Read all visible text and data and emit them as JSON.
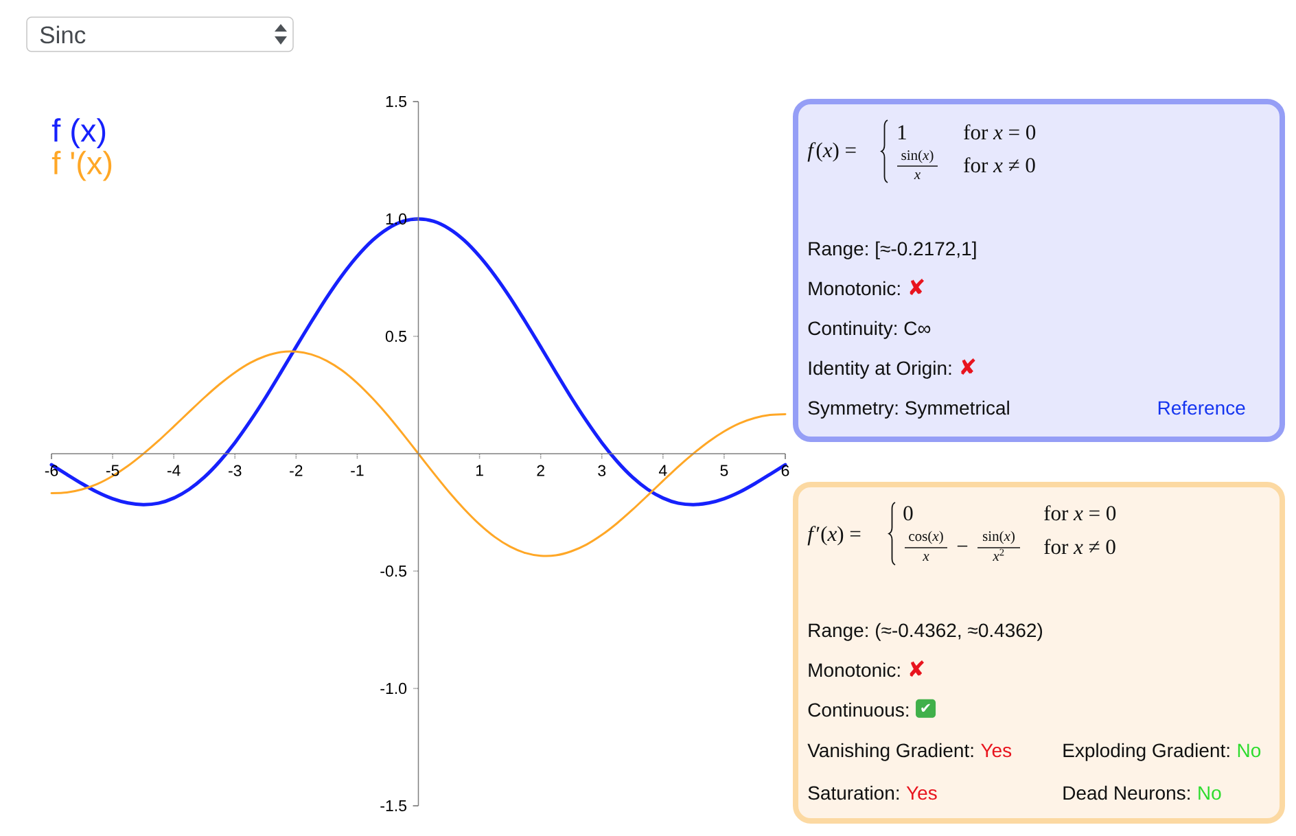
{
  "chart_data": [
    {
      "type": "line",
      "title": "Sinc",
      "x": [
        -6,
        -5.75,
        -5.5,
        -5.25,
        -5,
        -4.75,
        -4.5,
        -4.25,
        -4,
        -3.75,
        -3.5,
        -3.25,
        -3,
        -2.75,
        -2.5,
        -2.25,
        -2,
        -1.75,
        -1.5,
        -1.25,
        -1,
        -0.75,
        -0.5,
        -0.25,
        0,
        0.25,
        0.5,
        0.75,
        1,
        1.25,
        1.5,
        1.75,
        2,
        2.25,
        2.5,
        2.75,
        3,
        3.25,
        3.5,
        3.75,
        4,
        4.25,
        4.5,
        4.75,
        5,
        5.25,
        5.5,
        5.75,
        6
      ],
      "series": [
        {
          "name": "f (x)",
          "color": "#1621fc",
          "values": [
            -0.047,
            -0.088,
            -0.128,
            -0.164,
            -0.192,
            -0.21,
            -0.217,
            -0.211,
            -0.189,
            -0.152,
            -0.1,
            -0.033,
            0.047,
            0.139,
            0.239,
            0.346,
            0.455,
            0.562,
            0.665,
            0.759,
            0.841,
            0.909,
            0.959,
            0.99,
            1,
            0.99,
            0.959,
            0.909,
            0.841,
            0.759,
            0.665,
            0.562,
            0.455,
            0.346,
            0.239,
            0.139,
            0.047,
            -0.033,
            -0.1,
            -0.152,
            -0.189,
            -0.211,
            -0.217,
            -0.21,
            -0.192,
            -0.164,
            -0.128,
            -0.088,
            -0.047
          ]
        },
        {
          "name": "f '(x)",
          "color": "#ffa726",
          "values": [
            -0.168,
            -0.165,
            -0.152,
            -0.129,
            -0.095,
            -0.052,
            -0.001,
            0.055,
            0.116,
            0.178,
            0.239,
            0.296,
            0.346,
            0.387,
            0.416,
            0.433,
            0.435,
            0.423,
            0.396,
            0.355,
            0.301,
            0.236,
            0.163,
            0.083,
            0,
            -0.083,
            -0.163,
            -0.236,
            -0.301,
            -0.355,
            -0.396,
            -0.423,
            -0.435,
            -0.433,
            -0.416,
            -0.387,
            -0.346,
            -0.296,
            -0.239,
            -0.178,
            -0.116,
            -0.055,
            0.001,
            0.052,
            0.095,
            0.129,
            0.152,
            0.165,
            0.168
          ]
        }
      ],
      "xlim": [
        -6,
        6
      ],
      "ylim": [
        -1.5,
        1.5
      ],
      "xticks": [
        -6,
        -5,
        -4,
        -3,
        -2,
        -1,
        1,
        2,
        3,
        4,
        5,
        6
      ],
      "yticks": [
        -1.5,
        {
          "value": -1,
          "label": "-1.0"
        },
        -0.5,
        0.5,
        {
          "value": 1,
          "label": "1.0"
        },
        1.5
      ],
      "legend": "top left"
    },
    {
      "type": "other",
      "annotations": [
        "*f*(*x*) =",
        "1",
        "for *x* = 0",
        "sin(*x*)",
        "*x*",
        "for *x* ≠ 0",
        "Range: [≈-0.2172,1]",
        "Monotonic:",
        "✘",
        "Continuity: C∞",
        "Identity at Origin:",
        "✘",
        "Symmetry: Symmetrical",
        "Reference"
      ]
    },
    {
      "type": "other",
      "annotations": [
        "*f*′(*x*) =",
        "0",
        "for *x* = 0",
        "cos(*x*)",
        "*x*",
        "−",
        "sin(*x*)",
        "*x*$^{2}$",
        "for *x* ≠ 0",
        "Range: (≈-0.4362, ≈0.4362)",
        "Monotonic:",
        "✘",
        "Continuous:",
        "✔",
        "Vanishing Gradient:",
        "Yes",
        "Exploding Gradient:",
        "No",
        "Saturation:",
        "Yes",
        "Dead Neurons:",
        "No"
      ]
    }
  ]
}
